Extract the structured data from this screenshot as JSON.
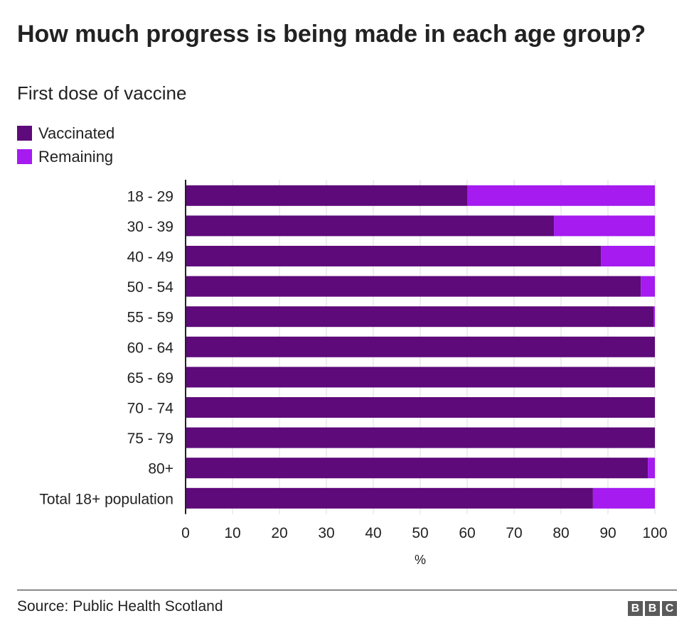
{
  "title": "How much progress is being made in each age group?",
  "subtitle": "First dose of vaccine",
  "legend": [
    {
      "label": "Vaccinated",
      "color": "#5e0a7a"
    },
    {
      "label": "Remaining",
      "color": "#a51bf0"
    }
  ],
  "source": "Source: Public Health Scotland",
  "logo": [
    "B",
    "B",
    "C"
  ],
  "chart_data": {
    "type": "bar",
    "orientation": "horizontal",
    "stacked": true,
    "categories": [
      "18 - 29",
      "30 - 39",
      "40 - 49",
      "50 - 54",
      "55 - 59",
      "60 - 64",
      "65 - 69",
      "70 - 74",
      "75 - 79",
      "80+",
      "Total 18+ population"
    ],
    "series": [
      {
        "name": "Vaccinated",
        "color": "#5e0a7a",
        "values": [
          60,
          78.5,
          88.5,
          97,
          99.7,
          100,
          100,
          100,
          100,
          98.5,
          86.8
        ]
      },
      {
        "name": "Remaining",
        "color": "#a51bf0",
        "values": [
          40,
          21.5,
          11.5,
          3,
          0.3,
          0,
          0,
          0,
          0,
          1.5,
          13.2
        ]
      }
    ],
    "xlabel": "%",
    "xlim": [
      0,
      100
    ],
    "xticks": [
      0,
      10,
      20,
      30,
      40,
      50,
      60,
      70,
      80,
      90,
      100
    ],
    "grid": true
  }
}
